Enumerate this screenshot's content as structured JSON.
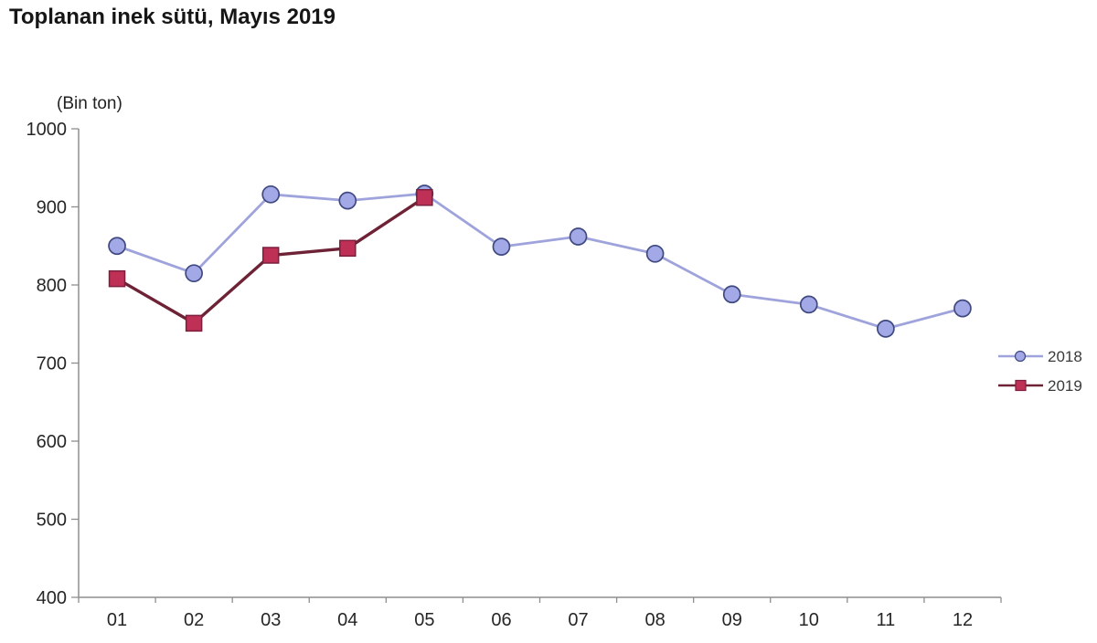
{
  "page": {
    "title": "Toplanan inek sütü, Mayıs 2019",
    "unit_label": "(Bin ton)"
  },
  "chart_data": {
    "type": "line",
    "title": "Toplanan inek sütü, Mayıs 2019",
    "subtitle": "",
    "xlabel": "",
    "ylabel": "(Bin ton)",
    "categories": [
      "01",
      "02",
      "03",
      "04",
      "05",
      "06",
      "07",
      "08",
      "09",
      "10",
      "11",
      "12"
    ],
    "series": [
      {
        "name": "2018",
        "marker": "circle",
        "line_color": "#9fa3dc",
        "marker_fill": "#a3a9e6",
        "marker_stroke": "#3f4980",
        "values": [
          850,
          815,
          916,
          908,
          917,
          849,
          862,
          840,
          788,
          775,
          744,
          770
        ]
      },
      {
        "name": "2019",
        "marker": "square",
        "line_color": "#6e2236",
        "marker_fill": "#be3056",
        "marker_stroke": "#7c1f3e",
        "values": [
          808,
          751,
          838,
          847,
          912
        ]
      }
    ],
    "ylim": [
      400,
      1000
    ],
    "ytick_step": 100,
    "grid": false,
    "legend_position": "right",
    "axis_color": "#8e8e8e",
    "tick_label_color": "#262626",
    "legend_text_color": "#3a3a3a"
  }
}
